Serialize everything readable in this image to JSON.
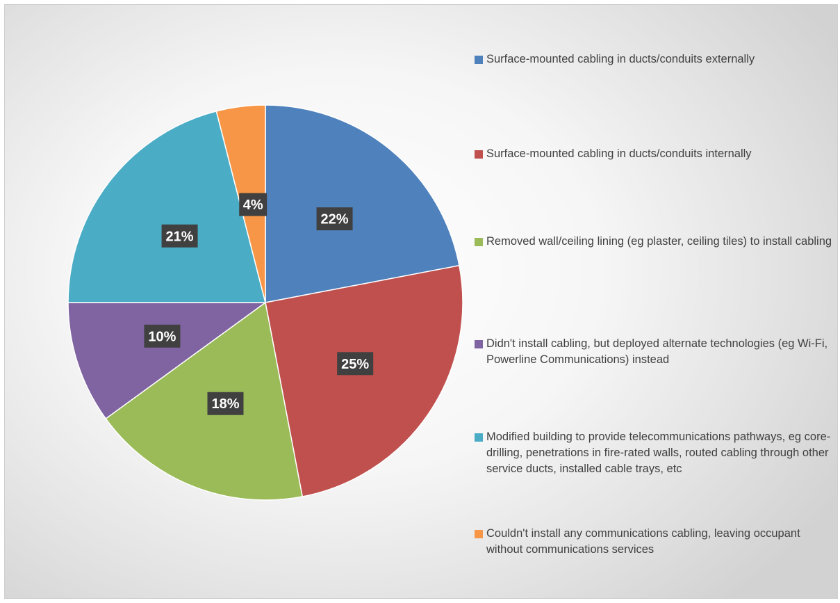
{
  "chart_data": {
    "type": "pie",
    "categories": [
      "Surface-mounted cabling in ducts/conduits externally",
      "Surface-mounted cabling in ducts/conduits internally",
      "Removed wall/ceiling lining (eg plaster, ceiling tiles) to install cabling",
      "Didn't install cabling, but deployed alternate technologies (eg Wi-Fi, Powerline Communications) instead",
      "Modified building to provide telecommunications pathways, eg core-drilling, penetrations in fire-rated walls, routed cabling through other service ducts, installed cable trays, etc",
      "Couldn't install any communications cabling, leaving occupant without communications services"
    ],
    "values": [
      22,
      25,
      18,
      10,
      21,
      4
    ],
    "data_labels": [
      "22%",
      "25%",
      "18%",
      "10%",
      "21%",
      "4%"
    ],
    "colors": [
      "#4f81bd",
      "#c0504d",
      "#9bbb59",
      "#8064a2",
      "#4bacc6",
      "#f79646"
    ],
    "legend_position": "right",
    "title": ""
  }
}
